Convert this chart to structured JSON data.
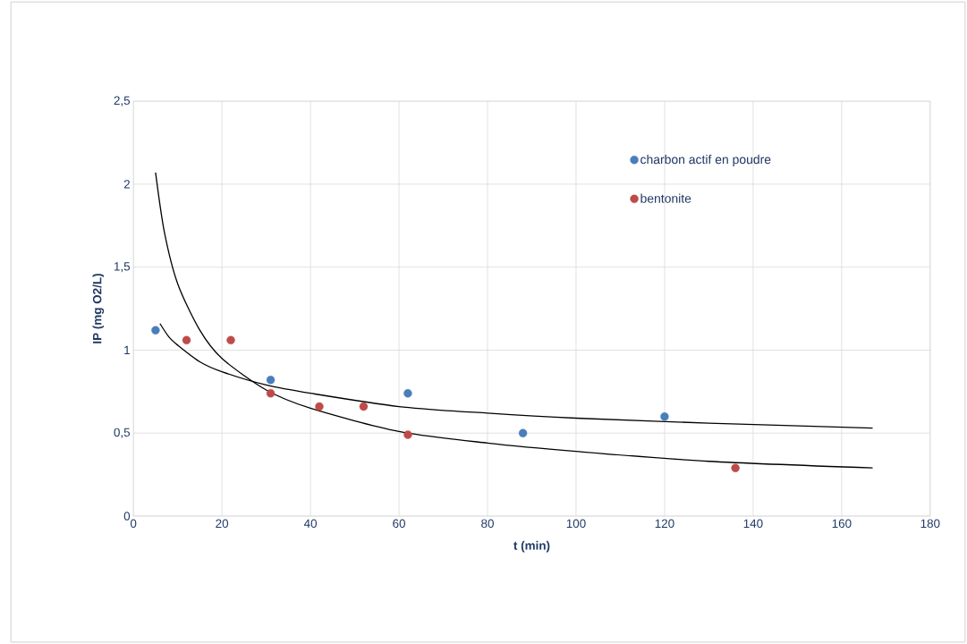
{
  "chart_data": {
    "type": "scatter",
    "xlabel": "t (min)",
    "ylabel": "IP (mg O2/L)",
    "xlim": [
      0,
      180
    ],
    "xticks": [
      0,
      20,
      40,
      60,
      80,
      100,
      120,
      140,
      160,
      180
    ],
    "ylim": [
      0,
      2.5
    ],
    "yticks": [
      0,
      {
        "value": 0.5,
        "label": "0,5"
      },
      1,
      {
        "value": 1.5,
        "label": "1,5"
      },
      2,
      {
        "value": 2.5,
        "label": "2,5"
      }
    ],
    "grid": true,
    "legend": "top right",
    "marker": "circle",
    "series": [
      {
        "name": "charbon actif  en poudre",
        "color": "#4a7ebb",
        "x": [
          5,
          31,
          62,
          88,
          120
        ],
        "values": [
          1.12,
          0.82,
          0.74,
          0.5,
          0.6
        ]
      },
      {
        "name": "bentonite",
        "color": "#be4b48",
        "x": [
          12,
          22,
          31,
          42,
          52,
          62,
          136
        ],
        "values": [
          1.06,
          1.06,
          0.74,
          0.66,
          0.66,
          0.49,
          0.29
        ]
      },
      {
        "type": "line",
        "marker": "none",
        "color": "#000000",
        "x": [
          6,
          8,
          10,
          15,
          20,
          30,
          40,
          60,
          80,
          100,
          130,
          167
        ],
        "values": [
          1.16,
          1.08,
          1.03,
          0.93,
          0.87,
          0.79,
          0.74,
          0.66,
          0.62,
          0.59,
          0.56,
          0.53
        ]
      },
      {
        "type": "line",
        "marker": "none",
        "color": "#000000",
        "x": [
          5,
          7,
          10,
          15,
          20,
          30,
          40,
          60,
          80,
          100,
          130,
          167
        ],
        "values": [
          2.07,
          1.71,
          1.4,
          1.12,
          0.95,
          0.76,
          0.65,
          0.51,
          0.44,
          0.39,
          0.33,
          0.29
        ]
      }
    ]
  }
}
